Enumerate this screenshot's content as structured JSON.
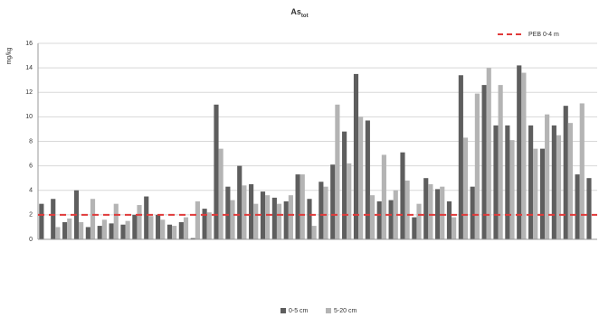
{
  "chart_data": {
    "type": "bar",
    "title": "As",
    "title_subscript": "tot",
    "y_label": "mg/kg",
    "categories": [
      null,
      null,
      null,
      null,
      null,
      null,
      null,
      null,
      null,
      null,
      null,
      null,
      null,
      null,
      null,
      null,
      null,
      null,
      null,
      null,
      null,
      null,
      null,
      null,
      null,
      null,
      null,
      null,
      null,
      null,
      null,
      null,
      null,
      null,
      null,
      null,
      null,
      null,
      null,
      null,
      null,
      null,
      null,
      null,
      null,
      null,
      null,
      null
    ],
    "series": [
      {
        "name": "0-5 cm",
        "color": "#5e5e5e",
        "values": [
          2.9,
          3.3,
          1.4,
          4.0,
          1.0,
          1.1,
          1.3,
          1.2,
          2.0,
          3.5,
          2.0,
          1.2,
          1.4,
          0.1,
          2.5,
          11.0,
          4.3,
          6.0,
          4.5,
          3.9,
          3.4,
          3.1,
          5.3,
          3.3,
          4.7,
          6.1,
          8.8,
          13.5,
          9.7,
          3.1,
          3.2,
          7.1,
          1.8,
          5.0,
          4.1,
          3.1,
          13.4,
          4.3,
          12.6,
          9.3,
          9.3,
          14.2,
          9.3,
          7.4,
          9.3,
          10.9,
          5.3,
          5.0
        ]
      },
      {
        "name": "5-20 cm",
        "color": "#b4b4b4",
        "values": [
          0,
          1.0,
          1.7,
          1.4,
          3.3,
          1.6,
          2.9,
          1.5,
          2.8,
          1.9,
          1.6,
          1.1,
          1.8,
          3.1,
          2.2,
          7.4,
          3.2,
          4.4,
          2.9,
          3.6,
          2.9,
          3.6,
          5.3,
          1.1,
          4.3,
          11.0,
          6.2,
          10.0,
          3.6,
          6.9,
          4.0,
          4.8,
          2.9,
          4.5,
          4.3,
          1.8,
          8.3,
          11.9,
          14.0,
          12.6,
          8.1,
          13.6,
          7.4,
          10.2,
          8.5,
          9.5,
          11.1,
          0
        ]
      }
    ],
    "reference_line": {
      "value": 2,
      "label": "PEB 0-4 m",
      "color": "#e03a3a"
    },
    "ylim": [
      0,
      16
    ],
    "yticks": [
      0,
      2,
      4,
      6,
      8,
      10,
      12,
      14,
      16
    ],
    "grid": true
  }
}
